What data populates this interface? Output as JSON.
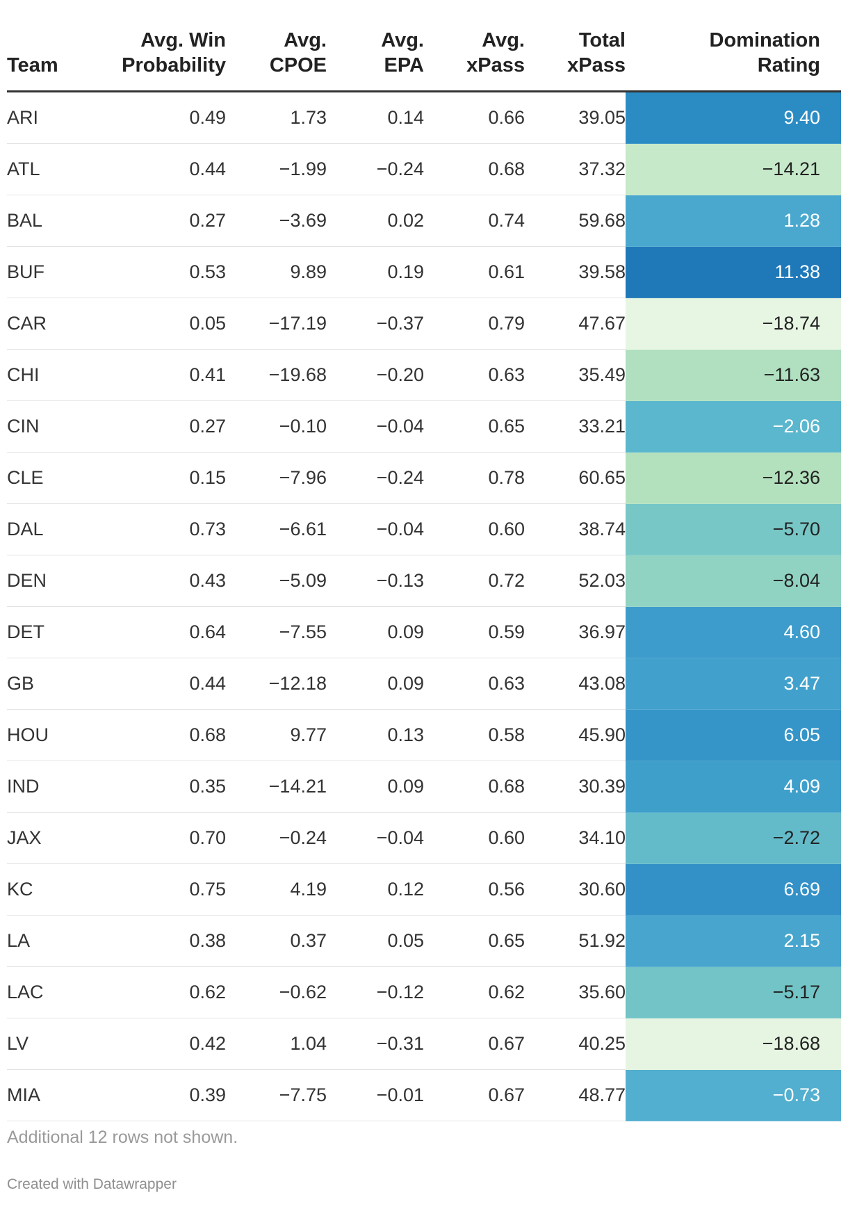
{
  "chart_data": {
    "type": "table",
    "columns": [
      {
        "key": "team",
        "label": "Team",
        "align": "left"
      },
      {
        "key": "win_prob",
        "label": "Avg. Win Probability",
        "align": "right"
      },
      {
        "key": "cpoe",
        "label": "Avg. CPOE",
        "align": "right"
      },
      {
        "key": "epa",
        "label": "Avg. EPA",
        "align": "right"
      },
      {
        "key": "xpass",
        "label": "Avg. xPass",
        "align": "right"
      },
      {
        "key": "total_xpass",
        "label": "Total xPass",
        "align": "right"
      },
      {
        "key": "domination",
        "label": "Domination Rating",
        "align": "right"
      }
    ],
    "column_labels_lines": [
      [
        "Team"
      ],
      [
        "Avg. Win",
        "Probability"
      ],
      [
        "Avg.",
        "CPOE"
      ],
      [
        "Avg.",
        "EPA"
      ],
      [
        "Avg.",
        "xPass"
      ],
      [
        "Total",
        "xPass"
      ],
      [
        "Domination",
        "Rating"
      ]
    ],
    "rows": [
      {
        "team": "ARI",
        "win_prob": "0.49",
        "cpoe": "1.73",
        "epa": "0.14",
        "xpass": "0.66",
        "total_xpass": "39.05",
        "domination": "9.40",
        "dom_color": "#2b8cc4",
        "dom_text": "#ffffff"
      },
      {
        "team": "ATL",
        "win_prob": "0.44",
        "cpoe": "−1.99",
        "epa": "−0.24",
        "xpass": "0.68",
        "total_xpass": "37.32",
        "domination": "−14.21",
        "dom_color": "#c6e9c9",
        "dom_text": "#222222"
      },
      {
        "team": "BAL",
        "win_prob": "0.27",
        "cpoe": "−3.69",
        "epa": "0.02",
        "xpass": "0.74",
        "total_xpass": "59.68",
        "domination": "1.28",
        "dom_color": "#4aa8cf",
        "dom_text": "#ffffff"
      },
      {
        "team": "BUF",
        "win_prob": "0.53",
        "cpoe": "9.89",
        "epa": "0.19",
        "xpass": "0.61",
        "total_xpass": "39.58",
        "domination": "11.38",
        "dom_color": "#1f78b8",
        "dom_text": "#ffffff"
      },
      {
        "team": "CAR",
        "win_prob": "0.05",
        "cpoe": "−17.19",
        "epa": "−0.37",
        "xpass": "0.79",
        "total_xpass": "47.67",
        "domination": "−18.74",
        "dom_color": "#e7f6e3",
        "dom_text": "#222222"
      },
      {
        "team": "CHI",
        "win_prob": "0.41",
        "cpoe": "−19.68",
        "epa": "−0.20",
        "xpass": "0.63",
        "total_xpass": "35.49",
        "domination": "−11.63",
        "dom_color": "#b0e0bf",
        "dom_text": "#222222"
      },
      {
        "team": "CIN",
        "win_prob": "0.27",
        "cpoe": "−0.10",
        "epa": "−0.04",
        "xpass": "0.65",
        "total_xpass": "33.21",
        "domination": "−2.06",
        "dom_color": "#5ab7cd",
        "dom_text": "#ffffff"
      },
      {
        "team": "CLE",
        "win_prob": "0.15",
        "cpoe": "−7.96",
        "epa": "−0.24",
        "xpass": "0.78",
        "total_xpass": "60.65",
        "domination": "−12.36",
        "dom_color": "#b4e1bd",
        "dom_text": "#222222"
      },
      {
        "team": "DAL",
        "win_prob": "0.73",
        "cpoe": "−6.61",
        "epa": "−0.04",
        "xpass": "0.60",
        "total_xpass": "38.74",
        "domination": "−5.70",
        "dom_color": "#77c7c6",
        "dom_text": "#222222"
      },
      {
        "team": "DEN",
        "win_prob": "0.43",
        "cpoe": "−5.09",
        "epa": "−0.13",
        "xpass": "0.72",
        "total_xpass": "52.03",
        "domination": "−8.04",
        "dom_color": "#91d3c3",
        "dom_text": "#222222"
      },
      {
        "team": "DET",
        "win_prob": "0.64",
        "cpoe": "−7.55",
        "epa": "0.09",
        "xpass": "0.59",
        "total_xpass": "36.97",
        "domination": "4.60",
        "dom_color": "#3d9ccb",
        "dom_text": "#ffffff"
      },
      {
        "team": "GB",
        "win_prob": "0.44",
        "cpoe": "−12.18",
        "epa": "0.09",
        "xpass": "0.63",
        "total_xpass": "43.08",
        "domination": "3.47",
        "dom_color": "#42a1cc",
        "dom_text": "#ffffff"
      },
      {
        "team": "HOU",
        "win_prob": "0.68",
        "cpoe": "9.77",
        "epa": "0.13",
        "xpass": "0.58",
        "total_xpass": "45.90",
        "domination": "6.05",
        "dom_color": "#3595c8",
        "dom_text": "#ffffff"
      },
      {
        "team": "IND",
        "win_prob": "0.35",
        "cpoe": "−14.21",
        "epa": "0.09",
        "xpass": "0.68",
        "total_xpass": "30.39",
        "domination": "4.09",
        "dom_color": "#3f9fcb",
        "dom_text": "#ffffff"
      },
      {
        "team": "JAX",
        "win_prob": "0.70",
        "cpoe": "−0.24",
        "epa": "−0.04",
        "xpass": "0.60",
        "total_xpass": "34.10",
        "domination": "−2.72",
        "dom_color": "#63bbca",
        "dom_text": "#222222"
      },
      {
        "team": "KC",
        "win_prob": "0.75",
        "cpoe": "4.19",
        "epa": "0.12",
        "xpass": "0.56",
        "total_xpass": "30.60",
        "domination": "6.69",
        "dom_color": "#3391c7",
        "dom_text": "#ffffff"
      },
      {
        "team": "LA",
        "win_prob": "0.38",
        "cpoe": "0.37",
        "epa": "0.05",
        "xpass": "0.65",
        "total_xpass": "51.92",
        "domination": "2.15",
        "dom_color": "#47a5ce",
        "dom_text": "#ffffff"
      },
      {
        "team": "LAC",
        "win_prob": "0.62",
        "cpoe": "−0.62",
        "epa": "−0.12",
        "xpass": "0.62",
        "total_xpass": "35.60",
        "domination": "−5.17",
        "dom_color": "#72c4c6",
        "dom_text": "#222222"
      },
      {
        "team": "LV",
        "win_prob": "0.42",
        "cpoe": "1.04",
        "epa": "−0.31",
        "xpass": "0.67",
        "total_xpass": "40.25",
        "domination": "−18.68",
        "dom_color": "#e6f5e1",
        "dom_text": "#222222"
      },
      {
        "team": "MIA",
        "win_prob": "0.39",
        "cpoe": "−7.75",
        "epa": "−0.01",
        "xpass": "0.67",
        "total_xpass": "48.77",
        "domination": "−0.73",
        "dom_color": "#52afcf",
        "dom_text": "#ffffff"
      }
    ]
  },
  "footer": {
    "note": "Additional 12 rows not shown.",
    "credit": "Created with Datawrapper"
  }
}
